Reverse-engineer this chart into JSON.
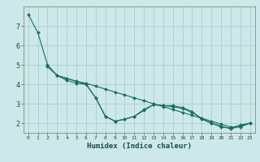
{
  "xlabel": "Humidex (Indice chaleur)",
  "bg_color": "#cce8e8",
  "grid_color": "#aacece",
  "line_color": "#1a6e5e",
  "xlim": [
    -0.5,
    23.5
  ],
  "ylim": [
    1.5,
    8.0
  ],
  "yticks": [
    2,
    3,
    4,
    5,
    6,
    7
  ],
  "xticks": [
    0,
    1,
    2,
    3,
    4,
    5,
    6,
    7,
    8,
    9,
    10,
    11,
    12,
    13,
    14,
    15,
    16,
    17,
    18,
    19,
    20,
    21,
    22,
    23
  ],
  "series": [
    {
      "x": [
        0,
        1,
        2,
        3,
        4,
        5,
        6,
        7,
        8,
        9,
        10,
        11,
        12,
        13,
        14,
        15,
        16,
        17,
        18,
        19,
        20,
        21,
        22,
        23
      ],
      "y": [
        7.6,
        6.65,
        5.0,
        4.45,
        4.2,
        4.05,
        4.0,
        3.3,
        2.35,
        2.1,
        2.2,
        2.35,
        2.65,
        2.95,
        2.9,
        2.9,
        2.8,
        2.6,
        2.2,
        2.0,
        1.8,
        1.75,
        1.9,
        2.0
      ]
    },
    {
      "x": [
        2,
        3,
        4,
        5,
        6,
        7,
        8,
        9,
        10,
        11,
        12,
        13,
        14,
        15,
        16,
        17,
        18,
        19,
        20,
        21,
        22,
        23
      ],
      "y": [
        4.9,
        4.45,
        4.3,
        4.15,
        4.05,
        3.9,
        3.75,
        3.6,
        3.45,
        3.3,
        3.15,
        3.0,
        2.85,
        2.7,
        2.55,
        2.4,
        2.25,
        2.1,
        1.95,
        1.8,
        1.8,
        2.0
      ]
    },
    {
      "x": [
        3,
        4,
        5,
        6,
        7,
        8,
        9,
        10,
        11,
        12,
        13,
        14,
        15,
        16,
        17,
        18,
        19,
        20,
        21,
        22,
        23
      ],
      "y": [
        4.45,
        4.3,
        4.15,
        4.0,
        3.3,
        2.35,
        2.1,
        2.2,
        2.35,
        2.7,
        2.95,
        2.9,
        2.85,
        2.75,
        2.55,
        2.25,
        2.0,
        1.85,
        1.7,
        1.85,
        2.0
      ]
    }
  ]
}
